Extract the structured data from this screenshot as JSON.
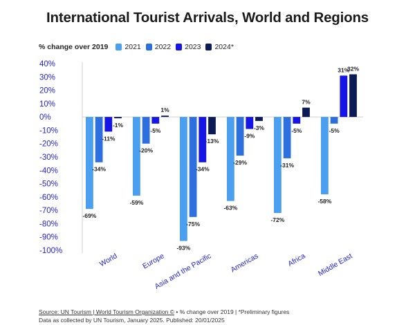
{
  "chart_data": {
    "type": "bar",
    "title": "International Tourist Arrivals, World and Regions",
    "legend_title": "% change over 2019",
    "categories": [
      "World",
      "Europe",
      "Asia and the Pacific",
      "Americas",
      "Africa",
      "Middle East"
    ],
    "series": [
      {
        "name": "2021",
        "color": "#4a9ff0",
        "values": [
          -69,
          -59,
          -93,
          -63,
          -72,
          -58
        ],
        "labels": [
          "-69%",
          "-59%",
          "-93%",
          "-63%",
          "-72%",
          "-58%"
        ]
      },
      {
        "name": "2022",
        "color": "#2e6fe0",
        "values": [
          -34,
          -20,
          -75,
          -29,
          -31,
          -5
        ],
        "labels": [
          "-34%",
          "-20%",
          "-75%",
          "-29%",
          "-31%",
          "-5%"
        ]
      },
      {
        "name": "2023",
        "color": "#1515e6",
        "values": [
          -11,
          -5,
          -34,
          -9,
          -5,
          31
        ],
        "labels": [
          "-11%",
          "-5%",
          "-34%",
          "-9%",
          "-5%",
          "31%"
        ]
      },
      {
        "name": "2024*",
        "color": "#0c1a55",
        "values": [
          -1,
          1,
          -13,
          -3,
          7,
          32
        ],
        "labels": [
          "-1%",
          "1%",
          "-13%",
          "-3%",
          "7%",
          "32%"
        ]
      }
    ],
    "ylim": [
      -100,
      40
    ],
    "yticks": [
      40,
      30,
      20,
      10,
      0,
      -10,
      -20,
      -30,
      -40,
      -50,
      -60,
      -70,
      -80,
      -90,
      -100
    ],
    "ytick_labels": [
      "40%",
      "30%",
      "20%",
      "10%",
      "0%",
      "-10%",
      "-20%",
      "-30%",
      "-40%",
      "-50%",
      "-60%",
      "-70%",
      "-80%",
      "-90%",
      "-100%"
    ],
    "grid": false,
    "legend_position": "top-left",
    "tick_color": "#2323d8"
  },
  "footer": {
    "source_link": "Source: UN Tourism | World Tourism Organization ©",
    "source_note": " • % change over 2019 | *Preliminary figures",
    "data_note": "Data as collected by UN Tourism, January 2025. Published: 20/01/2025"
  }
}
